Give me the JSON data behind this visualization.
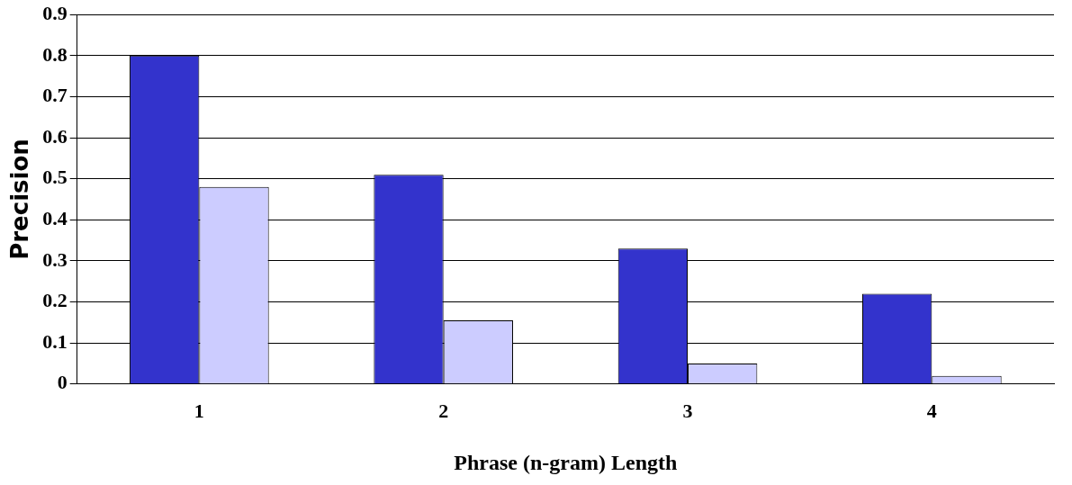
{
  "chart_data": {
    "type": "bar",
    "xlabel": "Phrase (n-gram) Length",
    "ylabel": "Precision",
    "categories": [
      "1",
      "2",
      "3",
      "4"
    ],
    "series": [
      {
        "color": "#3333cc",
        "values": [
          0.8,
          0.51,
          0.33,
          0.22
        ]
      },
      {
        "color": "#ccccff",
        "values": [
          0.48,
          0.155,
          0.05,
          0.02
        ]
      }
    ],
    "ylim": [
      0,
      0.9
    ],
    "yticks": [
      0,
      0.1,
      0.2,
      0.3,
      0.4,
      0.5,
      0.6,
      0.7,
      0.8,
      0.9
    ],
    "grid": "y",
    "legend": false
  }
}
